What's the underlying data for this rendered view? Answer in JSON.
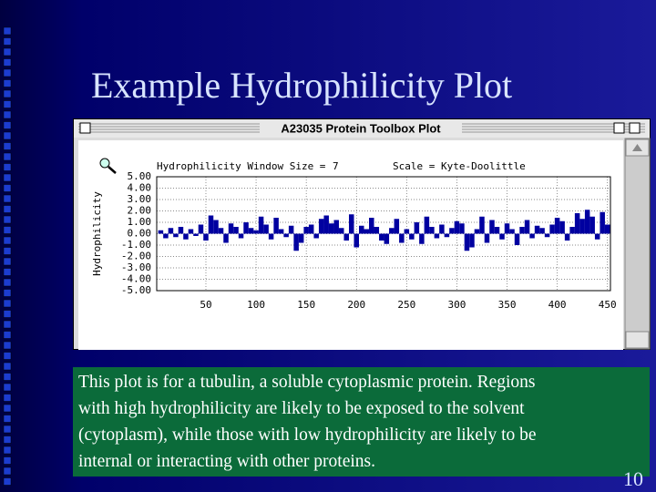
{
  "slide_title": "Example Hydrophilicity Plot",
  "window_title": "A23035 Protein Toolbox Plot",
  "chart_data": {
    "type": "bar",
    "header_label": "Hydrophilicity Window Size =",
    "window_size": "7",
    "scale_label": "Scale = Kyte-Doolittle",
    "y_label": "Hydrophilicity",
    "color": "#0000a0",
    "grid": true,
    "xlim": [
      1,
      453
    ],
    "ylim": [
      -5,
      5
    ],
    "xticks": [
      50,
      100,
      150,
      200,
      250,
      300,
      350,
      400,
      450
    ],
    "yticks": [
      {
        "value": 5,
        "label": "5.00"
      },
      {
        "value": 4,
        "label": "4.00"
      },
      {
        "value": 3,
        "label": "3.00"
      },
      {
        "value": 2,
        "label": "2.00"
      },
      {
        "value": 1,
        "label": "1.00"
      },
      {
        "value": 0,
        "label": "0.00"
      },
      {
        "value": -1,
        "label": "-1.00"
      },
      {
        "value": -2,
        "label": "-2.00"
      },
      {
        "value": -3,
        "label": "-3.00"
      },
      {
        "value": -4,
        "label": "-4.00"
      },
      {
        "value": -5,
        "label": "-5.00"
      }
    ],
    "x": [
      5,
      10,
      15,
      20,
      25,
      30,
      35,
      40,
      45,
      50,
      55,
      60,
      65,
      70,
      75,
      80,
      85,
      90,
      95,
      100,
      105,
      110,
      115,
      120,
      125,
      130,
      135,
      140,
      145,
      150,
      155,
      160,
      165,
      170,
      175,
      180,
      185,
      190,
      195,
      200,
      205,
      210,
      215,
      220,
      225,
      230,
      235,
      240,
      245,
      250,
      255,
      260,
      265,
      270,
      275,
      280,
      285,
      290,
      295,
      300,
      305,
      310,
      315,
      320,
      325,
      330,
      335,
      340,
      345,
      350,
      355,
      360,
      365,
      370,
      375,
      380,
      385,
      390,
      395,
      400,
      405,
      410,
      415,
      420,
      425,
      430,
      435,
      440,
      445,
      450
    ],
    "values": [
      0.3,
      -0.4,
      0.5,
      -0.3,
      0.6,
      -0.5,
      0.4,
      -0.2,
      0.8,
      -0.6,
      1.6,
      1.2,
      0.5,
      -0.8,
      0.9,
      0.6,
      -0.4,
      1.0,
      0.5,
      0.3,
      1.5,
      0.8,
      -0.5,
      1.4,
      0.4,
      -0.3,
      0.7,
      -1.5,
      -0.8,
      0.6,
      0.8,
      -0.4,
      1.3,
      1.6,
      0.9,
      1.2,
      0.5,
      -0.6,
      1.7,
      -1.2,
      0.7,
      0.4,
      1.4,
      0.6,
      -0.6,
      -0.9,
      0.5,
      1.3,
      -0.8,
      0.4,
      -0.5,
      1.0,
      -0.9,
      1.5,
      0.6,
      -0.4,
      0.8,
      -0.3,
      0.5,
      1.1,
      0.9,
      -1.5,
      -1.2,
      0.4,
      1.5,
      -0.8,
      1.2,
      0.6,
      -0.5,
      0.9,
      0.4,
      -1.0,
      0.6,
      1.2,
      -0.4,
      0.7,
      0.5,
      -0.3,
      0.8,
      1.4,
      1.1,
      -0.6,
      0.6,
      1.8,
      1.3,
      2.1,
      1.5,
      -0.5,
      1.9,
      0.8
    ]
  },
  "caption": [
    "This plot is for a tubulin, a soluble cytoplasmic protein.  Regions",
    "with high hydrophilicity are likely to be exposed to the solvent",
    "(cytoplasm), while those with low hydrophilicity are likely to be",
    "internal or interacting with other proteins."
  ],
  "page_number": "10"
}
